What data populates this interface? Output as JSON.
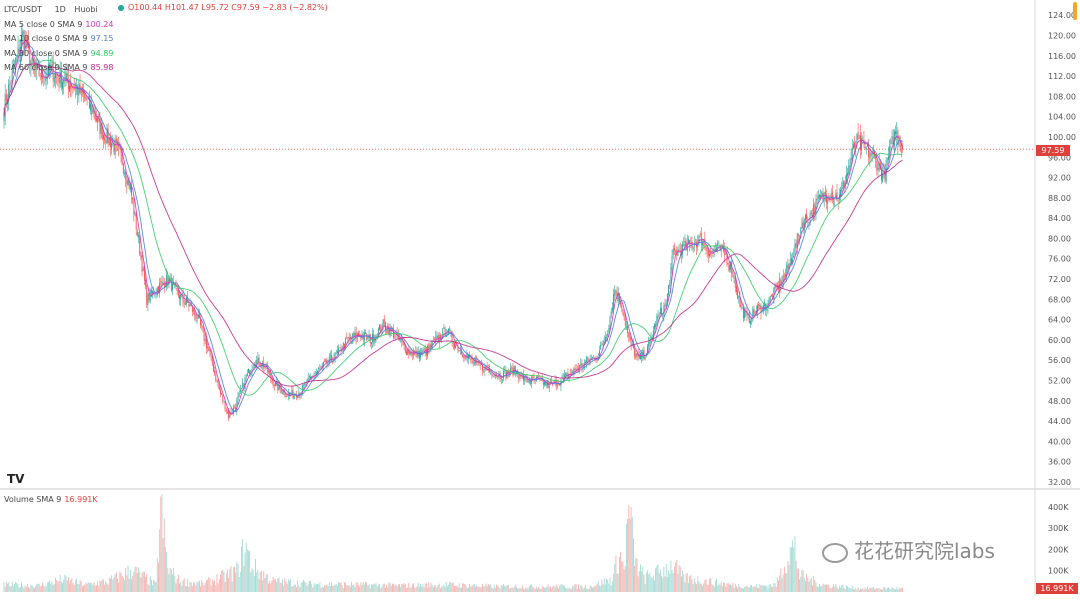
{
  "header": {
    "symbol": "LTC/USDT",
    "interval": "1D",
    "exchange": "Huobi",
    "ohlc": "O100.44  H101.47  L95.72  C97.59  −2.83 (−2.82%)"
  },
  "legend": [
    {
      "label": "MA 5 close 0 SMA 9",
      "value": "100.24",
      "color": "#d633c6"
    },
    {
      "label": "MA 10 close 0 SMA 9",
      "value": "97.15",
      "color": "#4a7fd8"
    },
    {
      "label": "MA 30 close 0 SMA 9",
      "value": "94.89",
      "color": "#33cc66"
    },
    {
      "label": "MA 60 close 0 SMA 9",
      "value": "85.98",
      "color": "#c2288c"
    }
  ],
  "volume_legend": {
    "label": "Volume SMA 9",
    "value": "16.991K"
  },
  "price_tag": "97.59",
  "volume_tag": "16.991K",
  "tv_logo": "TV",
  "watermark": "花花研究院labs",
  "colors": {
    "up": "#26a69a",
    "down": "#ef5350",
    "up_vol": "#a6dcd5",
    "down_vol": "#f5b3b1"
  },
  "chart_data": {
    "type": "candlestick",
    "price_axis": {
      "ticks": [
        "124.00",
        "120.00",
        "116.00",
        "112.00",
        "108.00",
        "104.00",
        "100.00",
        "96.00",
        "92.00",
        "88.00",
        "84.00",
        "80.00",
        "76.00",
        "72.00",
        "68.00",
        "64.00",
        "60.00",
        "56.00",
        "52.00",
        "48.00",
        "44.00",
        "40.00",
        "36.00",
        "32.00"
      ],
      "range": [
        31,
        127
      ]
    },
    "volume_axis": {
      "ticks": [
        "400K",
        "300K",
        "200K",
        "100K"
      ],
      "range": [
        0,
        470
      ]
    },
    "close_anchors": [
      [
        0,
        106
      ],
      [
        8,
        113
      ],
      [
        16,
        120
      ],
      [
        24,
        114
      ],
      [
        32,
        112
      ],
      [
        42,
        113
      ],
      [
        52,
        111
      ],
      [
        60,
        110
      ],
      [
        68,
        108
      ],
      [
        76,
        105
      ],
      [
        84,
        101
      ],
      [
        92,
        99
      ],
      [
        100,
        96
      ],
      [
        108,
        90
      ],
      [
        116,
        78
      ],
      [
        122,
        68
      ],
      [
        130,
        70
      ],
      [
        140,
        72
      ],
      [
        148,
        69
      ],
      [
        158,
        67
      ],
      [
        166,
        64
      ],
      [
        176,
        57
      ],
      [
        184,
        50
      ],
      [
        192,
        45
      ],
      [
        198,
        47
      ],
      [
        206,
        52
      ],
      [
        214,
        56
      ],
      [
        222,
        55
      ],
      [
        232,
        51
      ],
      [
        244,
        49
      ],
      [
        254,
        50
      ],
      [
        264,
        53
      ],
      [
        274,
        55
      ],
      [
        284,
        57
      ],
      [
        294,
        60
      ],
      [
        304,
        61
      ],
      [
        314,
        60
      ],
      [
        324,
        63
      ],
      [
        334,
        61
      ],
      [
        344,
        58
      ],
      [
        354,
        57
      ],
      [
        362,
        58
      ],
      [
        370,
        60
      ],
      [
        378,
        62
      ],
      [
        386,
        59
      ],
      [
        394,
        57
      ],
      [
        404,
        55
      ],
      [
        414,
        54
      ],
      [
        424,
        53
      ],
      [
        436,
        54
      ],
      [
        446,
        52
      ],
      [
        456,
        52
      ],
      [
        466,
        51
      ],
      [
        476,
        52
      ],
      [
        488,
        54
      ],
      [
        500,
        56
      ],
      [
        508,
        57
      ],
      [
        516,
        62
      ],
      [
        522,
        70
      ],
      [
        528,
        67
      ],
      [
        534,
        60
      ],
      [
        542,
        56
      ],
      [
        550,
        58
      ],
      [
        558,
        64
      ],
      [
        566,
        67
      ],
      [
        572,
        77
      ],
      [
        580,
        78
      ],
      [
        588,
        79
      ],
      [
        596,
        80
      ],
      [
        604,
        77
      ],
      [
        610,
        78
      ],
      [
        616,
        77
      ],
      [
        622,
        74
      ],
      [
        626,
        70
      ],
      [
        630,
        66
      ],
      [
        636,
        64
      ],
      [
        644,
        66
      ],
      [
        652,
        67
      ],
      [
        660,
        70
      ],
      [
        668,
        73
      ],
      [
        676,
        78
      ],
      [
        682,
        83
      ],
      [
        690,
        85
      ],
      [
        698,
        88
      ],
      [
        706,
        89
      ],
      [
        714,
        88
      ],
      [
        722,
        94
      ],
      [
        728,
        99
      ],
      [
        734,
        98
      ],
      [
        740,
        97
      ],
      [
        746,
        95
      ],
      [
        752,
        92
      ],
      [
        758,
        98
      ],
      [
        762,
        101
      ],
      [
        768,
        97.6
      ]
    ],
    "volume_anchors": [
      [
        0,
        40
      ],
      [
        30,
        35
      ],
      [
        50,
        70
      ],
      [
        70,
        40
      ],
      [
        90,
        60
      ],
      [
        110,
        120
      ],
      [
        130,
        40
      ],
      [
        134,
        460
      ],
      [
        140,
        130
      ],
      [
        150,
        60
      ],
      [
        170,
        45
      ],
      [
        190,
        90
      ],
      [
        200,
        120
      ],
      [
        206,
        260
      ],
      [
        212,
        140
      ],
      [
        230,
        60
      ],
      [
        260,
        45
      ],
      [
        300,
        40
      ],
      [
        340,
        35
      ],
      [
        380,
        40
      ],
      [
        420,
        30
      ],
      [
        460,
        30
      ],
      [
        500,
        30
      ],
      [
        520,
        70
      ],
      [
        526,
        210
      ],
      [
        530,
        130
      ],
      [
        534,
        450
      ],
      [
        540,
        150
      ],
      [
        548,
        80
      ],
      [
        560,
        110
      ],
      [
        572,
        150
      ],
      [
        580,
        80
      ],
      [
        600,
        60
      ],
      [
        620,
        40
      ],
      [
        640,
        30
      ],
      [
        660,
        40
      ],
      [
        672,
        230
      ],
      [
        676,
        240
      ],
      [
        680,
        90
      ],
      [
        700,
        40
      ],
      [
        730,
        20
      ],
      [
        768,
        20
      ]
    ]
  }
}
